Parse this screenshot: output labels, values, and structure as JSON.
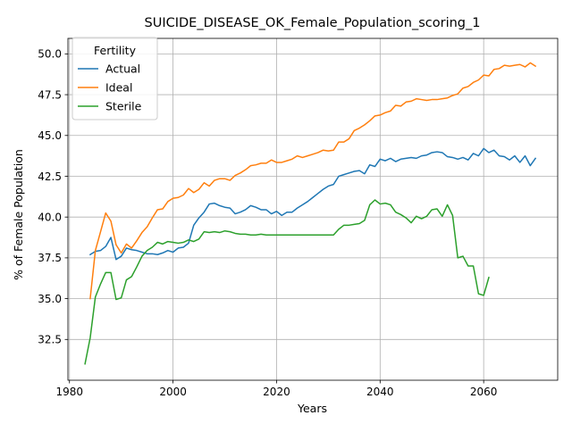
{
  "chart_data": {
    "type": "line",
    "title": "SUICIDE_DISEASE_OK_Female_Population_scoring_1",
    "xlabel": "Years",
    "ylabel": "% of Female Population",
    "xlim": [
      1979.7,
      2074.3
    ],
    "ylim": [
      30.0,
      50.95
    ],
    "xticks": [
      1980,
      2000,
      2020,
      2040,
      2060
    ],
    "yticks": [
      32.5,
      35.0,
      37.5,
      40.0,
      42.5,
      45.0,
      47.5,
      50.0
    ],
    "grid": true,
    "legend": {
      "title": "Fertility",
      "placement": "upper-left"
    },
    "series": [
      {
        "name": "Actual",
        "color": "#1f77b4",
        "x": [
          1984,
          1985,
          1986,
          1987,
          1988,
          1989,
          1990,
          1991,
          1992,
          1993,
          1994,
          1995,
          1996,
          1997,
          1998,
          1999,
          2000,
          2001,
          2002,
          2003,
          2004,
          2005,
          2006,
          2007,
          2008,
          2009,
          2010,
          2011,
          2012,
          2013,
          2014,
          2015,
          2016,
          2017,
          2018,
          2019,
          2020,
          2021,
          2022,
          2023,
          2024,
          2025,
          2026,
          2027,
          2028,
          2029,
          2030,
          2031,
          2032,
          2033,
          2034,
          2035,
          2036,
          2037,
          2038,
          2039,
          2040,
          2041,
          2042,
          2043,
          2044,
          2045,
          2046,
          2047,
          2048,
          2049,
          2050,
          2051,
          2052,
          2053,
          2054,
          2055,
          2056,
          2057,
          2058,
          2059,
          2060,
          2061,
          2062,
          2063,
          2064,
          2065,
          2066,
          2067,
          2068,
          2069,
          2070
        ],
        "values": [
          37.7,
          37.9,
          37.95,
          38.2,
          38.75,
          37.4,
          37.6,
          38.1,
          38.0,
          37.95,
          37.85,
          37.75,
          37.75,
          37.7,
          37.8,
          37.95,
          37.85,
          38.1,
          38.15,
          38.4,
          39.5,
          39.95,
          40.3,
          40.8,
          40.85,
          40.7,
          40.6,
          40.55,
          40.2,
          40.3,
          40.45,
          40.7,
          40.6,
          40.45,
          40.45,
          40.2,
          40.35,
          40.1,
          40.3,
          40.3,
          40.55,
          40.75,
          40.95,
          41.2,
          41.45,
          41.7,
          41.9,
          42.0,
          42.5,
          42.6,
          42.7,
          42.8,
          42.85,
          42.65,
          43.2,
          43.1,
          43.55,
          43.45,
          43.6,
          43.4,
          43.55,
          43.6,
          43.65,
          43.6,
          43.75,
          43.8,
          43.95,
          44.0,
          43.95,
          43.7,
          43.65,
          43.55,
          43.65,
          43.5,
          43.9,
          43.75,
          44.2,
          43.95,
          44.1,
          43.75,
          43.7,
          43.5,
          43.75,
          43.35,
          43.75,
          43.15,
          43.6
        ]
      },
      {
        "name": "Ideal",
        "color": "#ff7f0e",
        "x": [
          1984,
          1985,
          1986,
          1987,
          1988,
          1989,
          1990,
          1991,
          1992,
          1993,
          1994,
          1995,
          1996,
          1997,
          1998,
          1999,
          2000,
          2001,
          2002,
          2003,
          2004,
          2005,
          2006,
          2007,
          2008,
          2009,
          2010,
          2011,
          2012,
          2013,
          2014,
          2015,
          2016,
          2017,
          2018,
          2019,
          2020,
          2021,
          2022,
          2023,
          2024,
          2025,
          2026,
          2027,
          2028,
          2029,
          2030,
          2031,
          2032,
          2033,
          2034,
          2035,
          2036,
          2037,
          2038,
          2039,
          2040,
          2041,
          2042,
          2043,
          2044,
          2045,
          2046,
          2047,
          2048,
          2049,
          2050,
          2051,
          2052,
          2053,
          2054,
          2055,
          2056,
          2057,
          2058,
          2059,
          2060,
          2061,
          2062,
          2063,
          2064,
          2065,
          2066,
          2067,
          2068,
          2069,
          2070
        ],
        "values": [
          35.0,
          37.95,
          39.1,
          40.25,
          39.75,
          38.3,
          37.8,
          38.35,
          38.1,
          38.55,
          39.05,
          39.4,
          39.95,
          40.45,
          40.5,
          40.95,
          41.15,
          41.2,
          41.35,
          41.75,
          41.5,
          41.7,
          42.1,
          41.9,
          42.25,
          42.35,
          42.35,
          42.25,
          42.55,
          42.7,
          42.9,
          43.15,
          43.2,
          43.3,
          43.3,
          43.5,
          43.35,
          43.35,
          43.45,
          43.55,
          43.75,
          43.65,
          43.75,
          43.85,
          43.95,
          44.1,
          44.05,
          44.1,
          44.6,
          44.6,
          44.8,
          45.3,
          45.45,
          45.65,
          45.9,
          46.2,
          46.25,
          46.4,
          46.5,
          46.85,
          46.8,
          47.05,
          47.1,
          47.25,
          47.2,
          47.15,
          47.2,
          47.2,
          47.25,
          47.3,
          47.45,
          47.55,
          47.9,
          48.0,
          48.25,
          48.4,
          48.7,
          48.65,
          49.05,
          49.1,
          49.3,
          49.25,
          49.3,
          49.35,
          49.2,
          49.45,
          49.25
        ]
      },
      {
        "name": "Sterile",
        "color": "#2ca02c",
        "x": [
          1983,
          1984,
          1985,
          1986,
          1987,
          1988,
          1989,
          1990,
          1991,
          1992,
          1993,
          1994,
          1995,
          1996,
          1997,
          1998,
          1999,
          2000,
          2001,
          2002,
          2003,
          2004,
          2005,
          2006,
          2007,
          2008,
          2009,
          2010,
          2011,
          2012,
          2013,
          2014,
          2015,
          2016,
          2017,
          2018,
          2019,
          2020,
          2021,
          2022,
          2023,
          2024,
          2025,
          2026,
          2027,
          2028,
          2029,
          2030,
          2031,
          2032,
          2033,
          2034,
          2035,
          2036,
          2037,
          2038,
          2039,
          2040,
          2041,
          2042,
          2043,
          2044,
          2045,
          2046,
          2047,
          2048,
          2049,
          2050,
          2051,
          2052,
          2053,
          2054,
          2055,
          2056,
          2057,
          2058,
          2059,
          2060,
          2061
        ],
        "values": [
          31.0,
          32.6,
          35.1,
          35.9,
          36.6,
          36.6,
          34.95,
          35.05,
          36.15,
          36.35,
          36.95,
          37.6,
          37.95,
          38.15,
          38.45,
          38.35,
          38.5,
          38.45,
          38.4,
          38.45,
          38.6,
          38.5,
          38.65,
          39.1,
          39.05,
          39.1,
          39.05,
          39.15,
          39.1,
          39.0,
          38.95,
          38.95,
          38.9,
          38.9,
          38.95,
          38.9,
          38.9,
          38.9,
          38.9,
          38.9,
          38.9,
          38.9,
          38.9,
          38.9,
          38.9,
          38.9,
          38.9,
          38.9,
          38.9,
          39.25,
          39.5,
          39.5,
          39.55,
          39.6,
          39.8,
          40.75,
          41.05,
          40.8,
          40.85,
          40.75,
          40.3,
          40.15,
          39.95,
          39.65,
          40.05,
          39.9,
          40.05,
          40.45,
          40.5,
          40.05,
          40.75,
          40.1,
          37.5,
          37.6,
          37.0,
          37.0,
          35.3,
          35.2,
          36.3
        ]
      }
    ]
  }
}
